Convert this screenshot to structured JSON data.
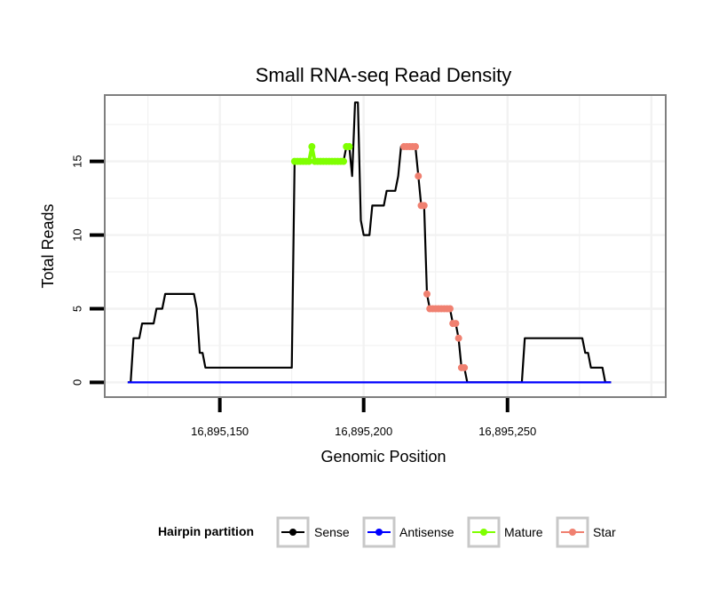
{
  "chart_data": {
    "type": "line",
    "title": "Small RNA-seq Read Density",
    "xlabel": "Genomic Position",
    "ylabel": "Total Reads",
    "xlim": [
      16895110,
      16895305
    ],
    "ylim": [
      -1,
      19.5
    ],
    "x_ticks": [
      16895150,
      16895200,
      16895250
    ],
    "x_tick_labels": [
      "16,895,150",
      "16,895,200",
      "16,895,250"
    ],
    "y_ticks": [
      0,
      5,
      10,
      15
    ],
    "y_tick_labels": [
      "0",
      "5",
      "10",
      "15"
    ],
    "grid": true,
    "legend": {
      "title": "Hairpin partition",
      "position": "bottom",
      "entries": [
        {
          "name": "Sense",
          "color": "#000000"
        },
        {
          "name": "Antisense",
          "color": "#0000ff"
        },
        {
          "name": "Mature",
          "color": "#7fff00"
        },
        {
          "name": "Star",
          "color": "#f08070"
        }
      ]
    },
    "series": [
      {
        "name": "Sense",
        "color": "#000000",
        "style": "line",
        "points": [
          [
            16895118,
            0
          ],
          [
            16895119,
            0
          ],
          [
            16895120,
            3
          ],
          [
            16895122,
            3
          ],
          [
            16895123,
            4
          ],
          [
            16895127,
            4
          ],
          [
            16895128,
            5
          ],
          [
            16895130,
            5
          ],
          [
            16895131,
            6
          ],
          [
            16895141,
            6
          ],
          [
            16895142,
            5
          ],
          [
            16895143,
            2
          ],
          [
            16895144,
            2
          ],
          [
            16895145,
            1
          ],
          [
            16895175,
            1
          ],
          [
            16895176,
            15
          ],
          [
            16895181,
            15
          ],
          [
            16895182,
            16
          ],
          [
            16895183,
            15
          ],
          [
            16895193,
            15
          ],
          [
            16895194,
            16
          ],
          [
            16895195,
            16
          ],
          [
            16895196,
            14
          ],
          [
            16895197,
            19
          ],
          [
            16895198,
            19
          ],
          [
            16895199,
            11
          ],
          [
            16895200,
            10
          ],
          [
            16895202,
            10
          ],
          [
            16895203,
            12
          ],
          [
            16895207,
            12
          ],
          [
            16895208,
            13
          ],
          [
            16895211,
            13
          ],
          [
            16895212,
            14
          ],
          [
            16895213,
            16
          ],
          [
            16895218,
            16
          ],
          [
            16895219,
            14
          ],
          [
            16895220,
            12
          ],
          [
            16895221,
            12
          ],
          [
            16895222,
            6
          ],
          [
            16895223,
            5
          ],
          [
            16895230,
            5
          ],
          [
            16895231,
            4
          ],
          [
            16895232,
            4
          ],
          [
            16895233,
            3
          ],
          [
            16895234,
            1
          ],
          [
            16895235,
            1
          ],
          [
            16895236,
            0
          ],
          [
            16895255,
            0
          ],
          [
            16895256,
            3
          ],
          [
            16895276,
            3
          ],
          [
            16895277,
            2
          ],
          [
            16895278,
            2
          ],
          [
            16895279,
            1
          ],
          [
            16895283,
            1
          ],
          [
            16895284,
            0
          ],
          [
            16895286,
            0
          ]
        ]
      },
      {
        "name": "Antisense",
        "color": "#0000ff",
        "style": "line",
        "points": [
          [
            16895118,
            0
          ],
          [
            16895286,
            0
          ]
        ]
      },
      {
        "name": "Mature",
        "color": "#7fff00",
        "style": "line+points",
        "segments": [
          [
            [
              16895176,
              15
            ],
            [
              16895177,
              15
            ],
            [
              16895178,
              15
            ],
            [
              16895179,
              15
            ],
            [
              16895180,
              15
            ],
            [
              16895181,
              15
            ],
            [
              16895182,
              16
            ],
            [
              16895183,
              15
            ],
            [
              16895184,
              15
            ],
            [
              16895185,
              15
            ],
            [
              16895186,
              15
            ],
            [
              16895187,
              15
            ],
            [
              16895188,
              15
            ],
            [
              16895189,
              15
            ],
            [
              16895190,
              15
            ],
            [
              16895191,
              15
            ],
            [
              16895192,
              15
            ],
            [
              16895193,
              15
            ]
          ],
          [
            [
              16895194,
              16
            ],
            [
              16895195,
              16
            ]
          ]
        ]
      },
      {
        "name": "Star",
        "color": "#f08070",
        "style": "points",
        "segments": [
          [
            [
              16895214,
              16
            ],
            [
              16895215,
              16
            ],
            [
              16895216,
              16
            ],
            [
              16895217,
              16
            ],
            [
              16895218,
              16
            ]
          ],
          [
            [
              16895219,
              14
            ]
          ],
          [
            [
              16895220,
              12
            ],
            [
              16895221,
              12
            ]
          ],
          [
            [
              16895222,
              6
            ]
          ],
          [
            [
              16895223,
              5
            ],
            [
              16895224,
              5
            ],
            [
              16895225,
              5
            ],
            [
              16895226,
              5
            ],
            [
              16895227,
              5
            ],
            [
              16895228,
              5
            ],
            [
              16895229,
              5
            ],
            [
              16895230,
              5
            ]
          ],
          [
            [
              16895231,
              4
            ],
            [
              16895232,
              4
            ]
          ],
          [
            [
              16895233,
              3
            ]
          ],
          [
            [
              16895234,
              1
            ],
            [
              16895235,
              1
            ]
          ]
        ]
      }
    ]
  }
}
